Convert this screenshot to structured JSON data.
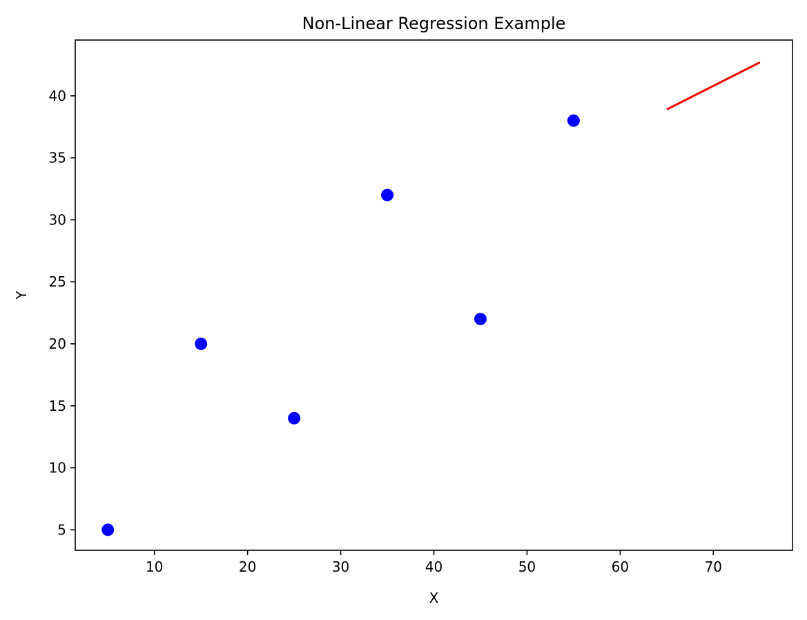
{
  "chart_data": {
    "type": "scatter",
    "title": "Non-Linear Regression Example",
    "xlabel": "X",
    "ylabel": "Y",
    "xlim": [
      1.5,
      78.5
    ],
    "ylim": [
      3.35,
      44.5
    ],
    "xticks": [
      10,
      20,
      30,
      40,
      50,
      60,
      70
    ],
    "yticks": [
      5,
      10,
      15,
      20,
      25,
      30,
      35,
      40
    ],
    "grid": false,
    "series": [
      {
        "type": "scatter",
        "color": "#0000ff",
        "x": [
          5,
          15,
          25,
          35,
          45,
          55
        ],
        "y": [
          5,
          20,
          14,
          32,
          22,
          38
        ]
      },
      {
        "type": "line",
        "color": "#ff0000",
        "x": [
          65,
          75
        ],
        "y": [
          38.9,
          42.7
        ]
      }
    ]
  }
}
